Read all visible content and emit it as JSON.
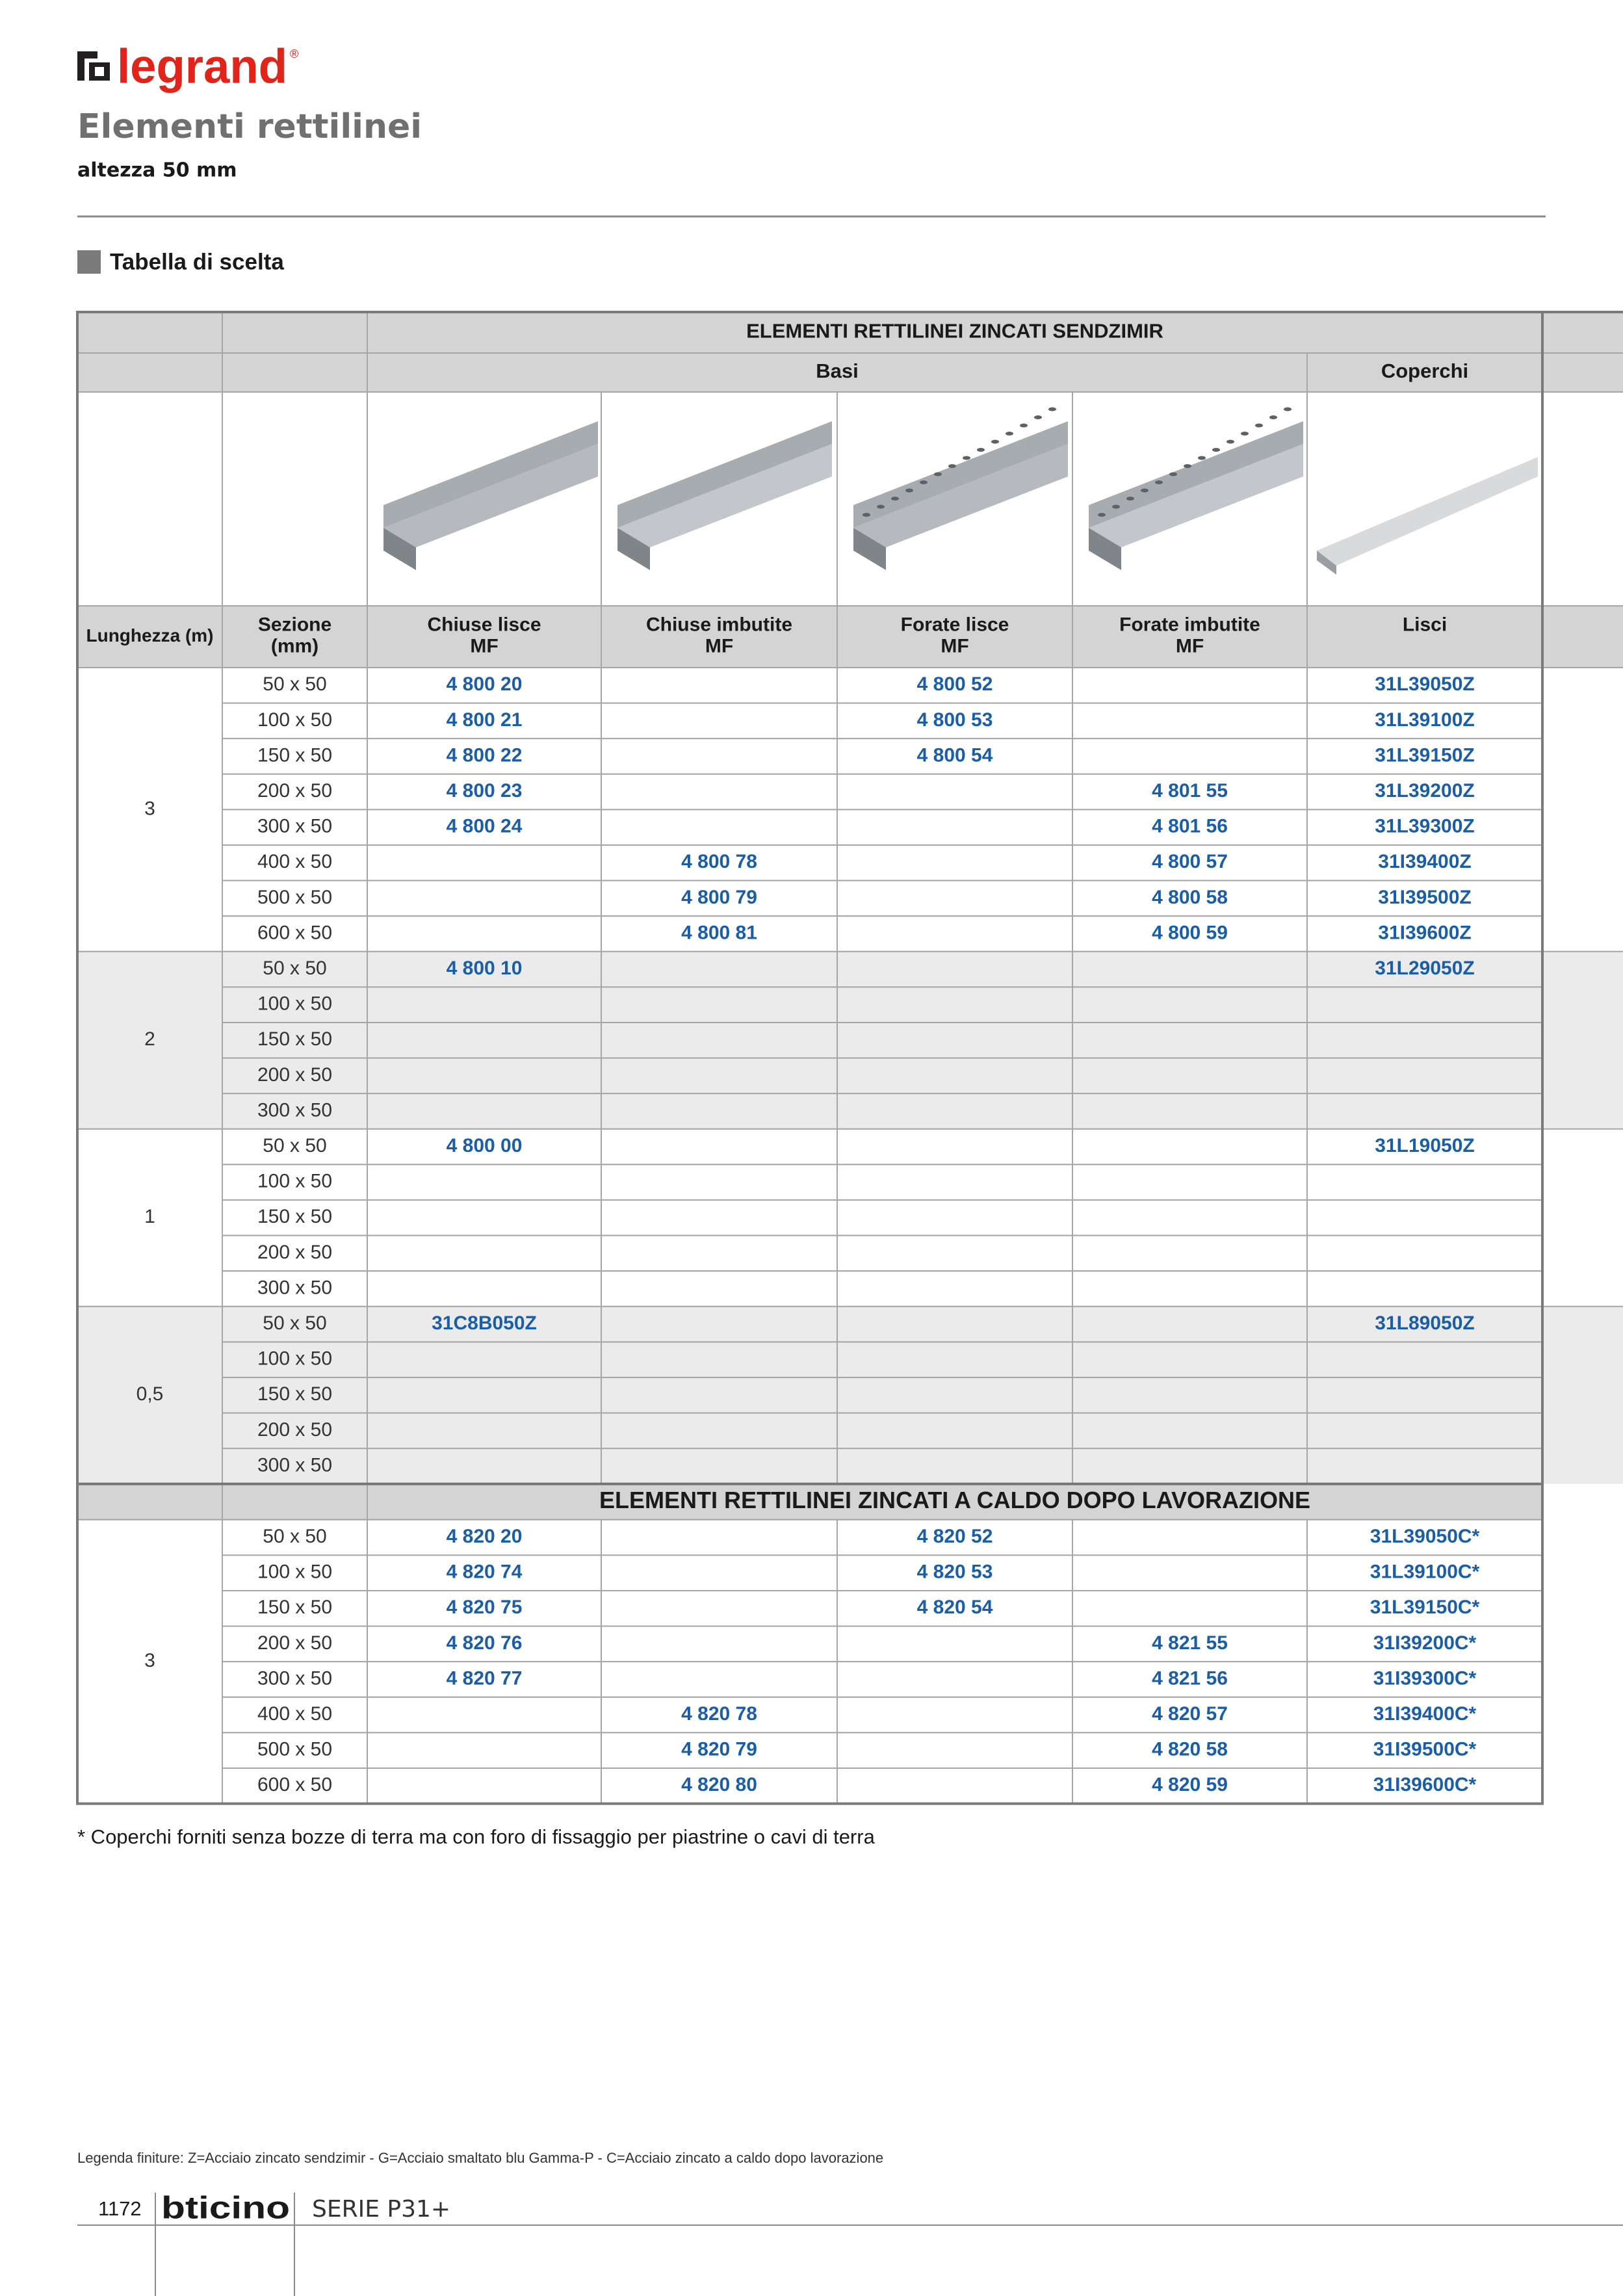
{
  "header": {
    "logo": "legrand",
    "logo_mark": "®",
    "title": "Elementi rettilinei",
    "subtitle": "altezza 50 mm"
  },
  "section_title": "Tabella di scelta",
  "table": {
    "columns": [
      [
        "Lunghezza (m)"
      ],
      [
        "Sezione",
        "(mm)"
      ],
      [
        "Chiuse lisce",
        "MF"
      ],
      [
        "Chiuse imbutite",
        "MF"
      ],
      [
        "Forate lisce",
        "MF"
      ],
      [
        "Forate imbutite",
        "MF"
      ],
      [
        "Lisci"
      ]
    ],
    "subgroups": [
      "Basi",
      "Coperchi"
    ],
    "sections": [
      {
        "title": "ELEMENTI RETTILINEI ZINCATI SENDZIMIR",
        "blocks": [
          {
            "length": "3",
            "rows": [
              [
                "50 x 50",
                "4 800 20",
                null,
                "4 800 52",
                null,
                "31L39050Z"
              ],
              [
                "100 x 50",
                "4 800 21",
                null,
                "4 800 53",
                null,
                "31L39100Z"
              ],
              [
                "150 x 50",
                "4 800 22",
                null,
                "4 800 54",
                null,
                "31L39150Z"
              ],
              [
                "200 x 50",
                "4 800 23",
                null,
                null,
                "4 801 55",
                "31L39200Z"
              ],
              [
                "300 x 50",
                "4 800 24",
                null,
                null,
                "4 801 56",
                "31L39300Z"
              ],
              [
                "400 x 50",
                null,
                "4 800 78",
                null,
                "4 800 57",
                "31I39400Z"
              ],
              [
                "500 x 50",
                null,
                "4 800 79",
                null,
                "4 800 58",
                "31I39500Z"
              ],
              [
                "600 x 50",
                null,
                "4 800 81",
                null,
                "4 800 59",
                "31I39600Z"
              ]
            ]
          },
          {
            "length": "2",
            "rows": [
              [
                "50 x 50",
                "4 800 10",
                null,
                null,
                null,
                "31L29050Z"
              ],
              [
                "100 x 50",
                null,
                null,
                null,
                null,
                null
              ],
              [
                "150 x 50",
                null,
                null,
                null,
                null,
                null
              ],
              [
                "200 x 50",
                null,
                null,
                null,
                null,
                null
              ],
              [
                "300 x 50",
                null,
                null,
                null,
                null,
                null
              ]
            ]
          },
          {
            "length": "1",
            "rows": [
              [
                "50 x 50",
                "4 800 00",
                null,
                null,
                null,
                "31L19050Z"
              ],
              [
                "100 x 50",
                null,
                null,
                null,
                null,
                null
              ],
              [
                "150 x 50",
                null,
                null,
                null,
                null,
                null
              ],
              [
                "200 x 50",
                null,
                null,
                null,
                null,
                null
              ],
              [
                "300 x 50",
                null,
                null,
                null,
                null,
                null
              ]
            ]
          },
          {
            "length": "0,5",
            "rows": [
              [
                "50 x 50",
                "31C8B050Z",
                null,
                null,
                null,
                "31L89050Z"
              ],
              [
                "100 x 50",
                null,
                null,
                null,
                null,
                null
              ],
              [
                "150 x 50",
                null,
                null,
                null,
                null,
                null
              ],
              [
                "200 x 50",
                null,
                null,
                null,
                null,
                null
              ],
              [
                "300 x 50",
                null,
                null,
                null,
                null,
                null
              ]
            ]
          }
        ]
      },
      {
        "title": "ELEMENTI RETTILINEI ZINCATI A CALDO DOPO LAVORAZIONE",
        "blocks": [
          {
            "length": "3",
            "rows": [
              [
                "50 x 50",
                "4 820 20",
                null,
                "4 820 52",
                null,
                "31L39050C*"
              ],
              [
                "100 x 50",
                "4 820 74",
                null,
                "4 820 53",
                null,
                "31L39100C*"
              ],
              [
                "150 x 50",
                "4 820 75",
                null,
                "4 820 54",
                null,
                "31L39150C*"
              ],
              [
                "200 x 50",
                "4 820 76",
                null,
                null,
                "4 821 55",
                "31I39200C*"
              ],
              [
                "300 x 50",
                "4 820 77",
                null,
                null,
                "4 821 56",
                "31I39300C*"
              ],
              [
                "400 x 50",
                null,
                "4 820 78",
                null,
                "4 820 57",
                "31I39400C*"
              ],
              [
                "500 x 50",
                null,
                "4 820 79",
                null,
                "4 820 58",
                "31I39500C*"
              ],
              [
                "600 x 50",
                null,
                "4 820 80",
                null,
                "4 820 59",
                "31I39600C*"
              ]
            ]
          }
        ]
      }
    ]
  },
  "footnote": "* Coperchi forniti senza bozze di terra ma con foro di fissaggio per piastrine o cavi di terra",
  "footer": {
    "legend": "Legenda finiture: Z=Acciaio zincato sendzimir - G=Acciaio smaltato blu Gamma-P - C=Acciaio zincato a caldo dopo lavorazione",
    "page_number": "1172",
    "brand": "bticino",
    "series": "SERIE P31+"
  }
}
